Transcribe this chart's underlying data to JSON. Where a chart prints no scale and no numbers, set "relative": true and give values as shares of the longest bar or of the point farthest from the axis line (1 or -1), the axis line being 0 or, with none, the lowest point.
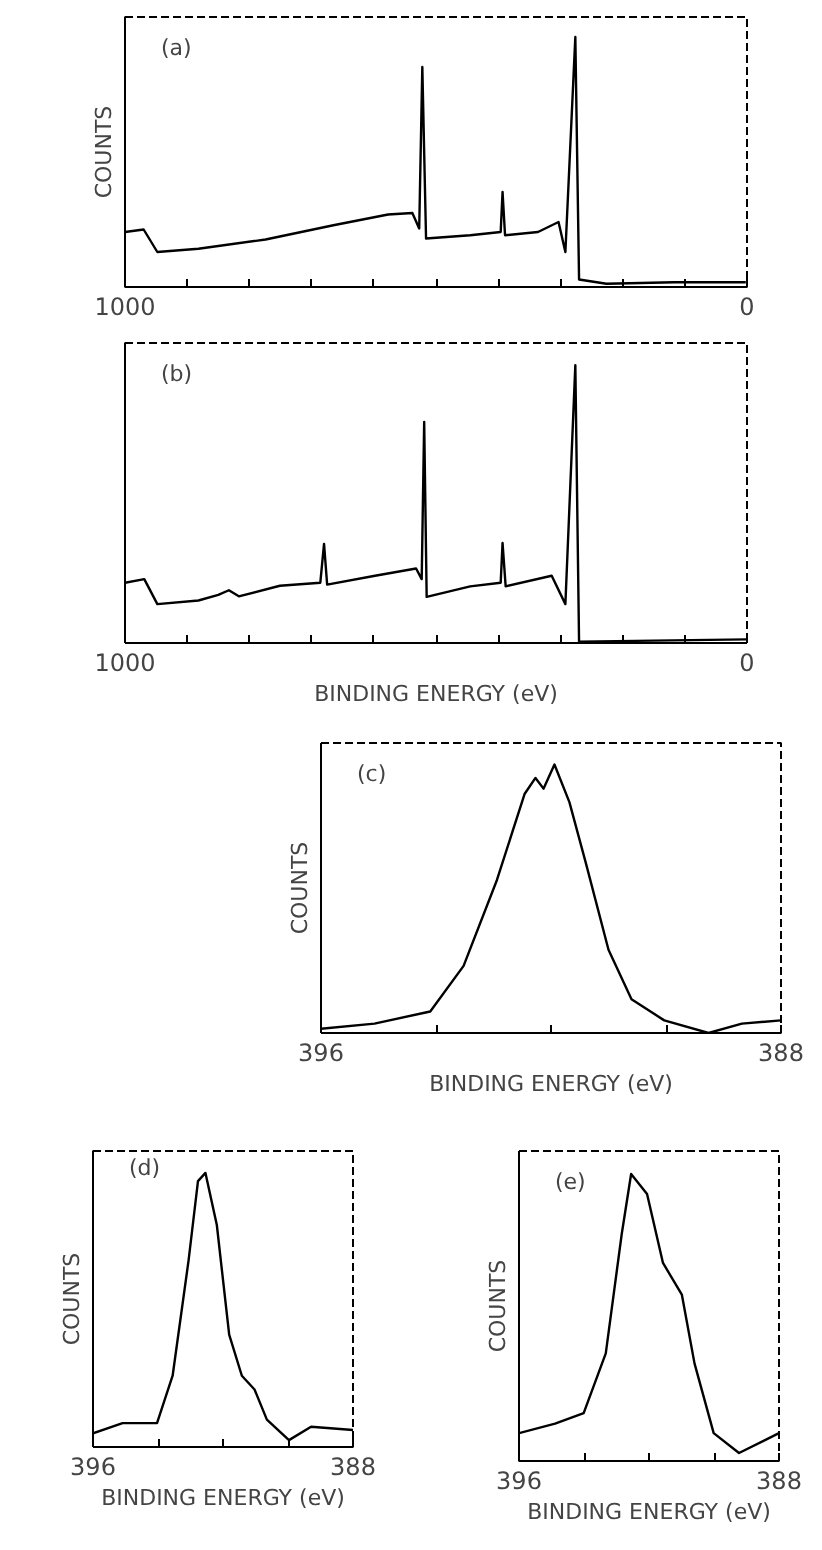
{
  "chart_data": [
    {
      "type": "line",
      "relative": true,
      "ylabel": "COUNTS",
      "annotations": [
        "(a)"
      ],
      "xlim": [
        1000,
        0
      ],
      "xticks": [
        1000,
        {
          "value": 900,
          "label": null
        },
        {
          "value": 800,
          "label": null
        },
        {
          "value": 700,
          "label": null
        },
        {
          "value": 600,
          "label": null
        },
        {
          "value": 500,
          "label": null
        },
        {
          "value": 400,
          "label": null
        },
        {
          "value": 300,
          "label": null
        },
        {
          "value": 200,
          "label": null
        },
        {
          "value": 100,
          "label": null
        },
        0
      ],
      "series": [
        {
          "color": "#000000",
          "x": [
            1000,
            970,
            948,
            882,
            774,
            665,
            577,
            538,
            527,
            522,
            516,
            445,
            396,
            393,
            389,
            336,
            303,
            292,
            276,
            270,
            226,
            117,
            2
          ],
          "values": [
            0.22,
            0.23,
            0.14,
            0.153,
            0.19,
            0.247,
            0.29,
            0.296,
            0.234,
            0.88,
            0.194,
            0.207,
            0.22,
            0.38,
            0.207,
            0.22,
            0.26,
            0.14,
            1.0,
            0.03,
            0.013,
            0.019,
            0.019
          ]
        }
      ]
    },
    {
      "type": "line",
      "relative": true,
      "xlabel": "BINDING ENERGY (eV)",
      "annotations": [
        "(b)"
      ],
      "xlim": [
        1000,
        0
      ],
      "xticks": [
        1000,
        {
          "value": 900,
          "label": null
        },
        {
          "value": 800,
          "label": null
        },
        {
          "value": 700,
          "label": null
        },
        {
          "value": 600,
          "label": null
        },
        {
          "value": 500,
          "label": null
        },
        {
          "value": 400,
          "label": null
        },
        {
          "value": 300,
          "label": null
        },
        {
          "value": 200,
          "label": null
        },
        {
          "value": 100,
          "label": null
        },
        0
      ],
      "series": [
        {
          "color": "#000000",
          "x": [
            1000,
            969,
            948,
            882,
            850,
            833,
            817,
            751,
            686,
            680,
            675,
            598,
            532,
            523,
            519,
            515,
            445,
            396,
            393,
            388,
            314,
            292,
            276,
            270,
            0
          ],
          "values": [
            0.217,
            0.23,
            0.14,
            0.153,
            0.173,
            0.19,
            0.168,
            0.206,
            0.217,
            0.357,
            0.21,
            0.242,
            0.268,
            0.23,
            0.796,
            0.166,
            0.204,
            0.217,
            0.36,
            0.204,
            0.242,
            0.14,
            1.0,
            0.005,
            0.013
          ]
        }
      ]
    },
    {
      "type": "line",
      "relative": true,
      "ylabel": "COUNTS",
      "xlabel": "BINDING ENERGY (eV)",
      "annotations": [
        "(c)"
      ],
      "xlim": [
        396,
        388
      ],
      "xticks": [
        396,
        {
          "value": 394,
          "label": null
        },
        {
          "value": 392,
          "label": null
        },
        {
          "value": 390,
          "label": null
        },
        388
      ],
      "series": [
        {
          "color": "#000000",
          "x": [
            396,
            395.07,
            394.1,
            393.52,
            392.94,
            392.46,
            392.27,
            392.13,
            391.94,
            391.68,
            391.39,
            391.0,
            390.6,
            390.03,
            389.26,
            388.68,
            388
          ],
          "values": [
            0.016,
            0.035,
            0.08,
            0.25,
            0.57,
            0.89,
            0.95,
            0.91,
            1.0,
            0.86,
            0.63,
            0.31,
            0.126,
            0.047,
            0.0,
            0.035,
            0.047
          ]
        }
      ]
    },
    {
      "type": "line",
      "relative": true,
      "ylabel": "COUNTS",
      "xlabel": "BINDING ENERGY (eV)",
      "annotations": [
        "(d)"
      ],
      "xlim": [
        396,
        388
      ],
      "xticks": [
        396,
        {
          "value": 394,
          "label": null
        },
        {
          "value": 392,
          "label": null
        },
        {
          "value": 390,
          "label": null
        },
        388
      ],
      "series": [
        {
          "color": "#000000",
          "x": [
            396,
            395.09,
            394.03,
            393.55,
            393.06,
            392.77,
            392.54,
            392.19,
            391.81,
            391.42,
            391.03,
            390.65,
            389.97,
            389.29,
            388
          ],
          "values": [
            0.05,
            0.087,
            0.087,
            0.26,
            0.68,
            0.97,
            1.0,
            0.81,
            0.41,
            0.26,
            0.21,
            0.1,
            0.025,
            0.074,
            0.062
          ]
        }
      ]
    },
    {
      "type": "line",
      "relative": true,
      "ylabel": "COUNTS",
      "xlabel": "BINDING ENERGY (eV)",
      "annotations": [
        "(e)"
      ],
      "xlim": [
        396,
        388
      ],
      "xticks": [
        396,
        {
          "value": 394,
          "label": null
        },
        {
          "value": 392,
          "label": null
        },
        {
          "value": 390,
          "label": null
        },
        388
      ],
      "series": [
        {
          "color": "#000000",
          "x": [
            396,
            394.89,
            394.01,
            393.33,
            392.84,
            392.55,
            392.06,
            391.57,
            390.99,
            390.6,
            390.01,
            389.23,
            388
          ],
          "values": [
            0.097,
            0.13,
            0.167,
            0.375,
            0.79,
            1.0,
            0.93,
            0.69,
            0.58,
            0.34,
            0.097,
            0.028,
            0.097
          ]
        }
      ]
    }
  ]
}
